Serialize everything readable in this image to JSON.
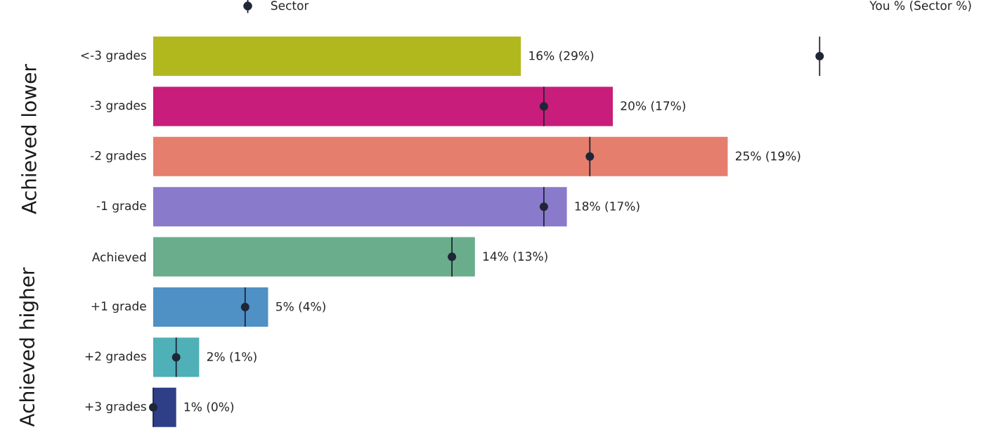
{
  "chart_data": {
    "type": "bar",
    "orientation": "horizontal",
    "categories": [
      "<-3 grades",
      "-3 grades",
      "-2 grades",
      "-1 grade",
      "Achieved",
      "+1 grade",
      "+2 grades",
      "+3 grades"
    ],
    "series": [
      {
        "colors": [
          "#b0b81e",
          "#c81d7a",
          "#e67e6e",
          "#8a7acb",
          "#6aad8c",
          "#4f90c5",
          "#4fb0b8",
          "#2e3f87"
        ],
        "values": [
          16,
          20,
          25,
          18,
          14,
          5,
          2,
          1
        ],
        "value_labels": [
          "16% (29%)",
          "20% (17%)",
          "25% (19%)",
          "18% (17%)",
          "14% (13%)",
          "5% (4%)",
          "2% (1%)",
          "1% (0%)"
        ]
      },
      {
        "type": "scatter",
        "name": "Sector",
        "color": "#1f2636",
        "marker": "circle",
        "values": [
          29,
          17,
          19,
          17,
          13,
          4,
          1,
          0
        ]
      }
    ],
    "legend": "top left",
    "tick_labels": "y",
    "annotations": [
      "You % (Sector %)",
      "Achieved lower",
      "Achieved higher"
    ]
  }
}
